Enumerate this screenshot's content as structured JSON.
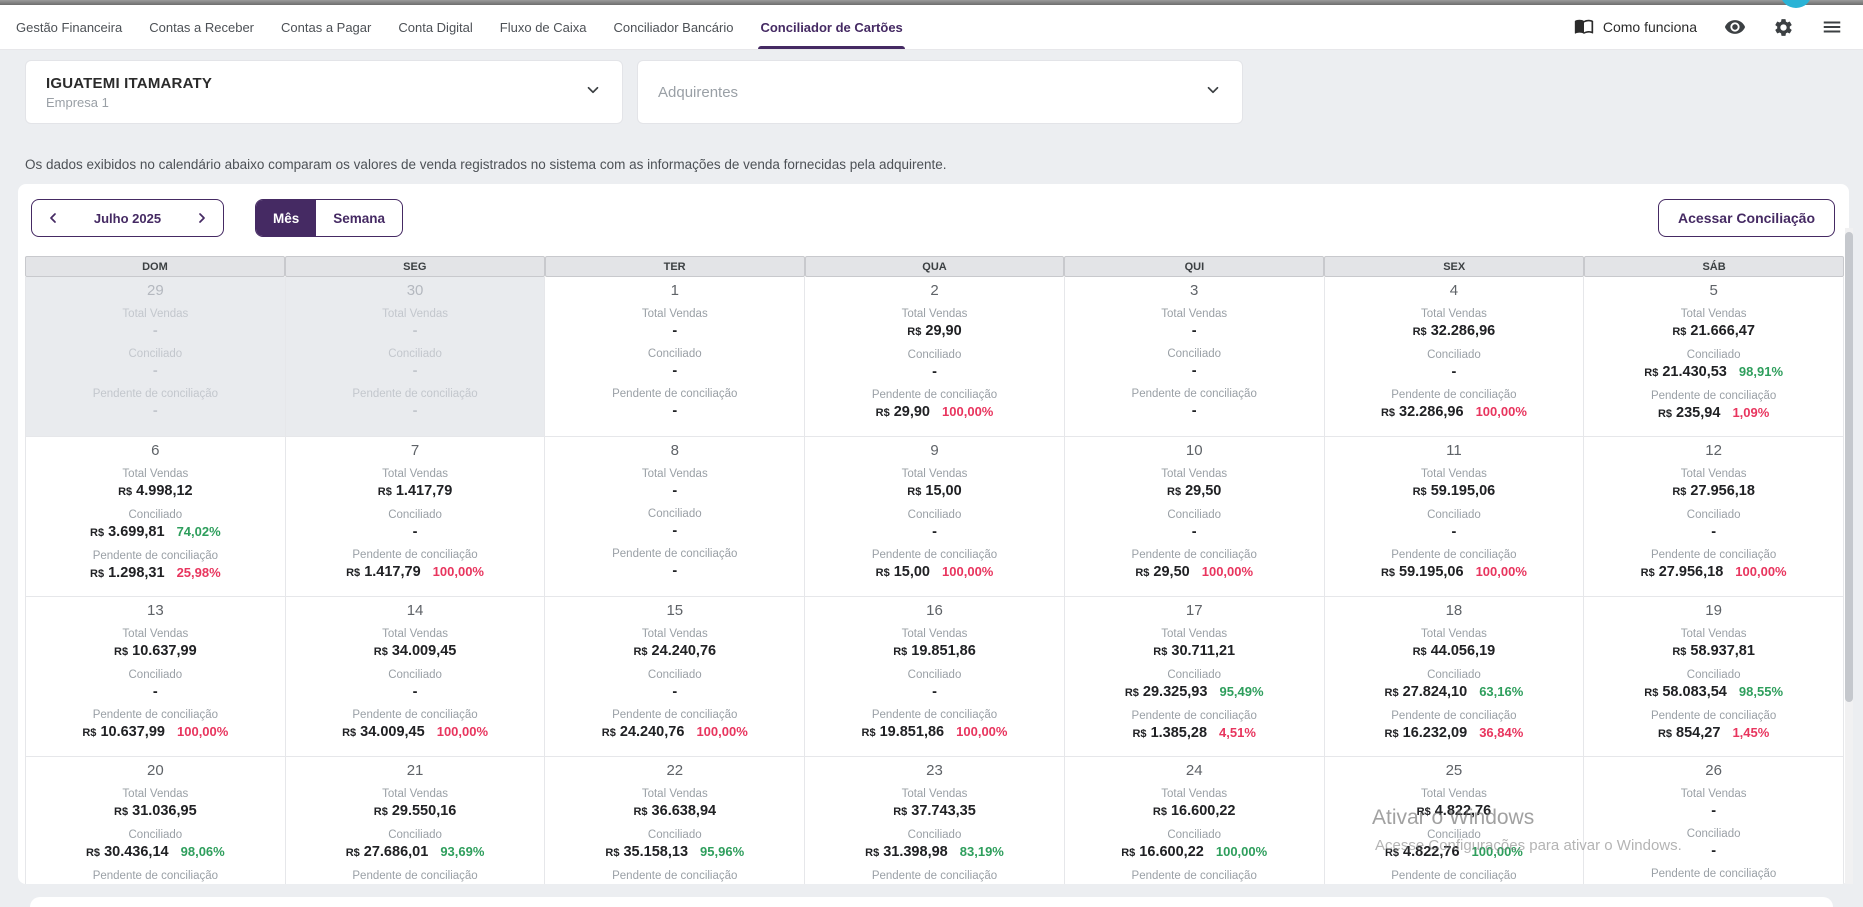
{
  "topbar": {
    "tabs": [
      {
        "label": "Gestão Financeira",
        "active": false
      },
      {
        "label": "Contas a Receber",
        "active": false
      },
      {
        "label": "Contas a Pagar",
        "active": false
      },
      {
        "label": "Conta Digital",
        "active": false
      },
      {
        "label": "Fluxo de Caixa",
        "active": false
      },
      {
        "label": "Conciliador Bancário",
        "active": false
      },
      {
        "label": "Conciliador de Cartões",
        "active": true
      }
    ],
    "help_label": "Como funciona"
  },
  "filters": {
    "company_name": "IGUATEMI ITAMARATY",
    "company_subtitle": "Empresa 1",
    "acquirers_placeholder": "Adquirentes"
  },
  "description": "Os dados exibidos no calendário abaixo comparam os valores de venda registrados no sistema com as informações de venda fornecidas pela adquirente.",
  "controls": {
    "period_label": "Julho 2025",
    "view_month_label": "Mês",
    "view_week_label": "Semana",
    "access_reconciliation_label": "Acessar Conciliação"
  },
  "calendar": {
    "weekday_headers": [
      "DOM",
      "SEG",
      "TER",
      "QUA",
      "QUI",
      "SEX",
      "SÁB"
    ],
    "row_labels": {
      "total": "Total Vendas",
      "reconciled": "Conciliado",
      "pending": "Pendente de conciliação"
    },
    "days": [
      {
        "day": "29",
        "disabled": true,
        "total": "-",
        "reconciled": "-",
        "pending": "-"
      },
      {
        "day": "30",
        "disabled": true,
        "total": "-",
        "reconciled": "-",
        "pending": "-"
      },
      {
        "day": "1",
        "total": "-",
        "reconciled": "-",
        "pending": "-"
      },
      {
        "day": "2",
        "total": "R$ 29,90",
        "reconciled": "-",
        "pending": "R$ 29,90",
        "pending_pct": "100,00%"
      },
      {
        "day": "3",
        "total": "-",
        "reconciled": "-",
        "pending": "-"
      },
      {
        "day": "4",
        "total": "R$ 32.286,96",
        "reconciled": "-",
        "pending": "R$ 32.286,96",
        "pending_pct": "100,00%"
      },
      {
        "day": "5",
        "total": "R$ 21.666,47",
        "reconciled": "R$ 21.430,53",
        "reconciled_pct": "98,91%",
        "pending": "R$ 235,94",
        "pending_pct": "1,09%"
      },
      {
        "day": "6",
        "total": "R$ 4.998,12",
        "reconciled": "R$ 3.699,81",
        "reconciled_pct": "74,02%",
        "pending": "R$ 1.298,31",
        "pending_pct": "25,98%"
      },
      {
        "day": "7",
        "total": "R$ 1.417,79",
        "reconciled": "-",
        "pending": "R$ 1.417,79",
        "pending_pct": "100,00%"
      },
      {
        "day": "8",
        "total": "-",
        "reconciled": "-",
        "pending": "-"
      },
      {
        "day": "9",
        "total": "R$ 15,00",
        "reconciled": "-",
        "pending": "R$ 15,00",
        "pending_pct": "100,00%"
      },
      {
        "day": "10",
        "total": "R$ 29,50",
        "reconciled": "-",
        "pending": "R$ 29,50",
        "pending_pct": "100,00%"
      },
      {
        "day": "11",
        "total": "R$ 59.195,06",
        "reconciled": "-",
        "pending": "R$ 59.195,06",
        "pending_pct": "100,00%"
      },
      {
        "day": "12",
        "total": "R$ 27.956,18",
        "reconciled": "-",
        "pending": "R$ 27.956,18",
        "pending_pct": "100,00%"
      },
      {
        "day": "13",
        "total": "R$ 10.637,99",
        "reconciled": "-",
        "pending": "R$ 10.637,99",
        "pending_pct": "100,00%"
      },
      {
        "day": "14",
        "total": "R$ 34.009,45",
        "reconciled": "-",
        "pending": "R$ 34.009,45",
        "pending_pct": "100,00%"
      },
      {
        "day": "15",
        "total": "R$ 24.240,76",
        "reconciled": "-",
        "pending": "R$ 24.240,76",
        "pending_pct": "100,00%"
      },
      {
        "day": "16",
        "total": "R$ 19.851,86",
        "reconciled": "-",
        "pending": "R$ 19.851,86",
        "pending_pct": "100,00%"
      },
      {
        "day": "17",
        "total": "R$ 30.711,21",
        "reconciled": "R$ 29.325,93",
        "reconciled_pct": "95,49%",
        "pending": "R$ 1.385,28",
        "pending_pct": "4,51%"
      },
      {
        "day": "18",
        "total": "R$ 44.056,19",
        "reconciled": "R$ 27.824,10",
        "reconciled_pct": "63,16%",
        "pending": "R$ 16.232,09",
        "pending_pct": "36,84%"
      },
      {
        "day": "19",
        "total": "R$ 58.937,81",
        "reconciled": "R$ 58.083,54",
        "reconciled_pct": "98,55%",
        "pending": "R$ 854,27",
        "pending_pct": "1,45%"
      },
      {
        "day": "20",
        "total": "R$ 31.036,95",
        "reconciled": "R$ 30.436,14",
        "reconciled_pct": "98,06%",
        "pending": ""
      },
      {
        "day": "21",
        "total": "R$ 29.550,16",
        "reconciled": "R$ 27.686,01",
        "reconciled_pct": "93,69%",
        "pending": ""
      },
      {
        "day": "22",
        "total": "R$ 36.638,94",
        "reconciled": "R$ 35.158,13",
        "reconciled_pct": "95,96%",
        "pending": ""
      },
      {
        "day": "23",
        "total": "R$ 37.743,35",
        "reconciled": "R$ 31.398,98",
        "reconciled_pct": "83,19%",
        "pending": ""
      },
      {
        "day": "24",
        "total": "R$ 16.600,22",
        "reconciled": "R$ 16.600,22",
        "reconciled_pct": "100,00%",
        "pending": ""
      },
      {
        "day": "25",
        "total": "R$ 4.822,76",
        "reconciled": "R$ 4.822,76",
        "reconciled_pct": "100,00%",
        "pending": ""
      },
      {
        "day": "26",
        "total": "-",
        "reconciled": "-",
        "pending": ""
      }
    ]
  },
  "watermark": {
    "line1": "Ativar o Windows",
    "line2": "Acesse Configurações para ativar o Windows."
  },
  "colors": {
    "primary_purple": "#452a63",
    "positive_green": "#2e9e5c",
    "negative_red": "#e8355e"
  }
}
